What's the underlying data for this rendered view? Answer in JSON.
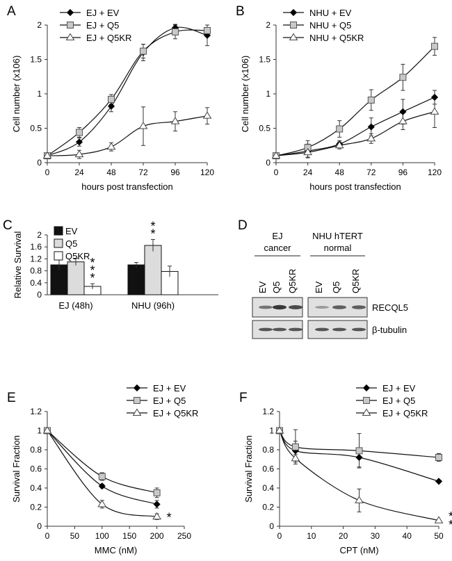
{
  "figure": {
    "panel_letters": [
      "A",
      "B",
      "C",
      "D",
      "E",
      "F"
    ],
    "blot": {
      "groups": [
        {
          "label": [
            "EJ",
            "cancer"
          ]
        },
        {
          "label": [
            "NHU hTERT",
            "normal"
          ]
        }
      ],
      "lanes": [
        "EV",
        "Q5",
        "Q5KR",
        "EV",
        "Q5",
        "Q5KR"
      ],
      "bands": [
        "RECQL5",
        "β-tubulin"
      ]
    }
  },
  "chart_data": [
    {
      "panel": "A",
      "type": "line",
      "xlabel": "hours post transfection",
      "ylabel": "Cell number (x106)",
      "xlim": [
        0,
        120
      ],
      "ylim": [
        0,
        2
      ],
      "xticks": [
        "0",
        "24",
        "48",
        "72",
        "96",
        "120"
      ],
      "yticks": [
        "0",
        "0.5",
        "1",
        "1.5",
        "2"
      ],
      "grid": false,
      "legend_position": "top-left",
      "x": [
        0,
        24,
        48,
        72,
        96,
        120
      ],
      "series": [
        {
          "name": "EJ + EV",
          "marker": "diamond",
          "values": [
            0.1,
            0.3,
            0.82,
            1.6,
            1.96,
            1.85
          ],
          "errors": [
            0.03,
            0.06,
            0.08,
            0.12,
            0.05,
            0.15
          ]
        },
        {
          "name": "EJ + Q5",
          "marker": "square",
          "values": [
            0.1,
            0.44,
            0.92,
            1.62,
            1.9,
            1.92
          ],
          "errors": [
            0.03,
            0.07,
            0.07,
            0.1,
            0.1,
            0.08
          ]
        },
        {
          "name": "EJ + Q5KR",
          "marker": "triangle",
          "values": [
            0.1,
            0.12,
            0.23,
            0.53,
            0.6,
            0.68
          ],
          "errors": [
            0.03,
            0.06,
            0.06,
            0.28,
            0.14,
            0.12
          ]
        }
      ]
    },
    {
      "panel": "B",
      "type": "line",
      "xlabel": "hours post transfection",
      "ylabel": "Cell number (x106)",
      "xlim": [
        0,
        120
      ],
      "ylim": [
        0,
        2
      ],
      "xticks": [
        "0",
        "24",
        "48",
        "72",
        "96",
        "120"
      ],
      "yticks": [
        "0",
        "0.5",
        "1",
        "1.5",
        "2"
      ],
      "grid": false,
      "legend_position": "top-left",
      "x": [
        0,
        24,
        48,
        72,
        96,
        120
      ],
      "series": [
        {
          "name": "NHU + EV",
          "marker": "diamond",
          "values": [
            0.1,
            0.17,
            0.27,
            0.52,
            0.74,
            0.95
          ],
          "errors": [
            0.04,
            0.1,
            0.05,
            0.13,
            0.18,
            0.1
          ]
        },
        {
          "name": "NHU + Q5",
          "marker": "square",
          "values": [
            0.1,
            0.22,
            0.49,
            0.91,
            1.24,
            1.69
          ],
          "errors": [
            0.04,
            0.1,
            0.12,
            0.15,
            0.19,
            0.13
          ]
        },
        {
          "name": "NHU + Q5KR",
          "marker": "triangle",
          "values": [
            0.1,
            0.15,
            0.25,
            0.35,
            0.6,
            0.74
          ],
          "errors": [
            0.04,
            0.07,
            0.05,
            0.07,
            0.12,
            0.23
          ]
        }
      ]
    },
    {
      "panel": "C",
      "type": "bar",
      "ylabel": "Relative Survival",
      "ylim": [
        0,
        2
      ],
      "yticks": [
        "0",
        "0.4",
        "0.8",
        "1.2",
        "1.6",
        "2"
      ],
      "categories": [
        "EJ (48h)",
        "NHU (96h)"
      ],
      "legend_position": "top-left",
      "series": [
        {
          "name": "EV",
          "fill": "#111111",
          "values": [
            1.0,
            1.0
          ],
          "errors": [
            0.17,
            0.08
          ]
        },
        {
          "name": "Q5",
          "fill": "#dcdcdc",
          "values": [
            1.1,
            1.65
          ],
          "errors": [
            0.12,
            0.2
          ]
        },
        {
          "name": "Q5KR",
          "fill": "#ffffff",
          "values": [
            0.28,
            0.78
          ],
          "errors": [
            0.09,
            0.18
          ]
        }
      ],
      "annotations": [
        {
          "category": "EJ (48h)",
          "series": "Q5KR",
          "text": "***"
        },
        {
          "category": "NHU (96h)",
          "series": "Q5",
          "text": "**"
        }
      ]
    },
    {
      "panel": "E",
      "type": "line",
      "xlabel": "MMC (nM)",
      "ylabel": "Survival Fraction",
      "xlim": [
        0,
        250
      ],
      "ylim": [
        0,
        1.2
      ],
      "xticks": [
        "0",
        "50",
        "100",
        "150",
        "200",
        "250"
      ],
      "yticks": [
        "0",
        "0.2",
        "0.4",
        "0.6",
        "0.8",
        "1",
        "1.2"
      ],
      "grid": false,
      "legend_position": "top-right",
      "x": [
        0,
        100,
        200
      ],
      "series": [
        {
          "name": "EJ + EV",
          "marker": "diamond",
          "values": [
            1.0,
            0.42,
            0.23
          ],
          "errors": [
            0.01,
            0.02,
            0.04
          ]
        },
        {
          "name": "EJ + Q5",
          "marker": "square",
          "values": [
            1.0,
            0.52,
            0.35
          ],
          "errors": [
            0.01,
            0.04,
            0.05
          ]
        },
        {
          "name": "EJ + Q5KR",
          "marker": "triangle",
          "values": [
            1.0,
            0.23,
            0.1
          ],
          "errors": [
            0.01,
            0.04,
            0.03
          ]
        }
      ],
      "annotations": [
        {
          "series": "EJ + Q5KR",
          "x": 200,
          "text": "*"
        }
      ]
    },
    {
      "panel": "F",
      "type": "line",
      "xlabel": "CPT (nM)",
      "ylabel": "Survival Fraction",
      "xlim": [
        0,
        50
      ],
      "ylim": [
        0,
        1.2
      ],
      "xticks": [
        "0",
        "10",
        "20",
        "30",
        "40",
        "50"
      ],
      "yticks": [
        "0",
        "0.2",
        "0.4",
        "0.6",
        "0.8",
        "1",
        "1.2"
      ],
      "grid": false,
      "legend_position": "top-right",
      "x": [
        0,
        5,
        25,
        50
      ],
      "series": [
        {
          "name": "EJ + EV",
          "marker": "diamond",
          "values": [
            1.0,
            0.79,
            0.72,
            0.47
          ],
          "errors": [
            0.01,
            0.1,
            0.1,
            0.01
          ]
        },
        {
          "name": "EJ + Q5",
          "marker": "square",
          "values": [
            1.0,
            0.83,
            0.79,
            0.72
          ],
          "errors": [
            0.01,
            0.18,
            0.18,
            0.04
          ]
        },
        {
          "name": "EJ + Q5KR",
          "marker": "triangle",
          "values": [
            1.0,
            0.71,
            0.27,
            0.06
          ],
          "errors": [
            0.01,
            0.04,
            0.12,
            0.01
          ]
        }
      ],
      "annotations": [
        {
          "series": "EJ + Q5KR",
          "x": 50,
          "text": "**"
        }
      ]
    }
  ]
}
